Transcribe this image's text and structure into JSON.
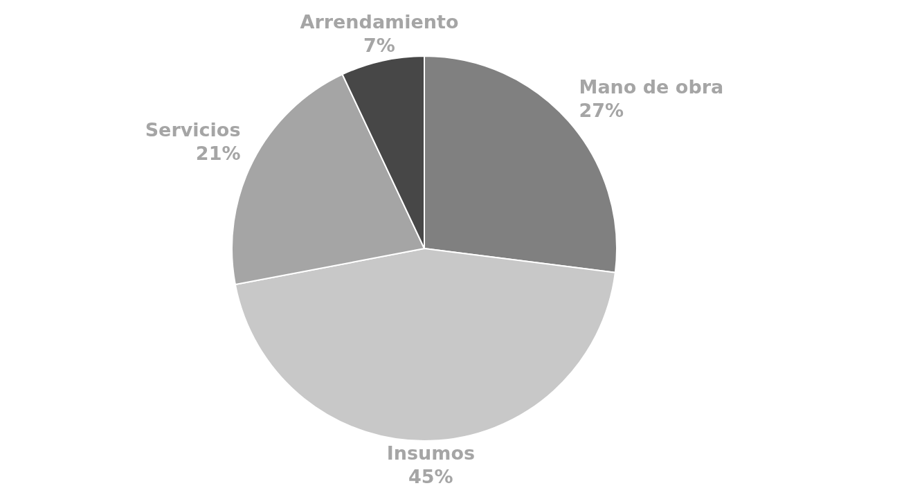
{
  "chart_data": {
    "type": "pie",
    "categories": [
      "Mano de obra",
      "Insumos",
      "Servicios",
      "Arrendamiento"
    ],
    "values": [
      27,
      45,
      21,
      7
    ],
    "value_labels": [
      "27%",
      "45%",
      "21%",
      "7%"
    ],
    "colors": [
      "#808080",
      "#c8c8c8",
      "#a5a5a5",
      "#474747"
    ],
    "legend": false
  }
}
